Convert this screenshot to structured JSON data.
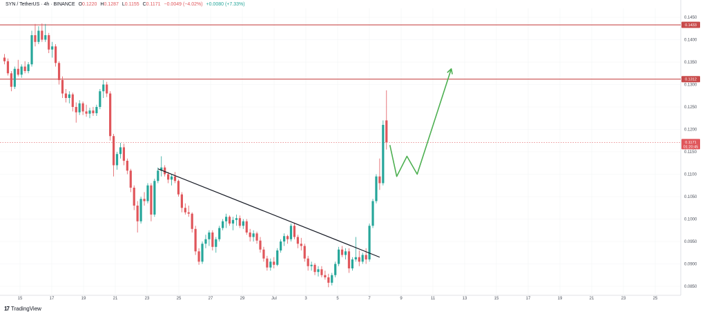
{
  "header": {
    "symbol": "SYN / TetherUS · 4h · BINANCE",
    "open_label": "O",
    "open": "0.1220",
    "high_label": "H",
    "high": "0.1287",
    "low_label": "L",
    "low": "0.1155",
    "close_label": "C",
    "close": "0.1171",
    "change": "−0.0049 (−4.02%)",
    "volume_change": "+0.0080 (+7.33%)"
  },
  "brand": {
    "name": "TradingView",
    "logo": "17"
  },
  "colors": {
    "up": "#26a69a",
    "down": "#e0565b",
    "resistance": "#c84a4a",
    "trendline": "#131722",
    "projection": "#4caf50",
    "last_price": "#e0565b"
  },
  "chart_data": {
    "type": "candlestick",
    "y_range": [
      0.083,
      0.147
    ],
    "y_ticks": [
      "0.1450",
      "0.1400",
      "0.1350",
      "0.1300",
      "0.1250",
      "0.1200",
      "0.1150",
      "0.1100",
      "0.1050",
      "0.1000",
      "0.0950",
      "0.0900",
      "0.0850"
    ],
    "x_ticks": [
      "15",
      "17",
      "19",
      "21",
      "23",
      "25",
      "27",
      "29",
      "Jul",
      "3",
      "5",
      "7",
      "9",
      "11",
      "13",
      "15",
      "17",
      "19",
      "21",
      "23",
      "25"
    ],
    "last_price": "0.1171",
    "countdown": "01:20:45",
    "resistance_levels": [
      {
        "label": "0.1433",
        "value": 0.1433
      },
      {
        "label": "0.1312",
        "value": 0.1312
      }
    ],
    "trendline": [
      {
        "i": 45,
        "y": 0.1112
      },
      {
        "i": 110,
        "y": 0.0915
      }
    ],
    "projection": [
      {
        "i": 113,
        "y": 0.1165
      },
      {
        "i": 115,
        "y": 0.1095
      },
      {
        "i": 118,
        "y": 0.114
      },
      {
        "i": 121,
        "y": 0.11
      },
      {
        "i": 131,
        "y": 0.1335
      }
    ],
    "candles": [
      [
        0.136,
        0.1368,
        0.1345,
        0.1352
      ],
      [
        0.1352,
        0.1358,
        0.132,
        0.1325
      ],
      [
        0.1325,
        0.133,
        0.1285,
        0.1295
      ],
      [
        0.1295,
        0.134,
        0.129,
        0.1335
      ],
      [
        0.1335,
        0.1355,
        0.1318,
        0.1322
      ],
      [
        0.1322,
        0.1345,
        0.1315,
        0.134
      ],
      [
        0.134,
        0.1352,
        0.1325,
        0.133
      ],
      [
        0.133,
        0.135,
        0.1325,
        0.1345
      ],
      [
        0.1345,
        0.142,
        0.134,
        0.141
      ],
      [
        0.141,
        0.1435,
        0.1385,
        0.1395
      ],
      [
        0.1395,
        0.143,
        0.139,
        0.142
      ],
      [
        0.142,
        0.1436,
        0.1395,
        0.14
      ],
      [
        0.14,
        0.1435,
        0.1395,
        0.141
      ],
      [
        0.141,
        0.1415,
        0.137,
        0.1378
      ],
      [
        0.1378,
        0.1395,
        0.136,
        0.1385
      ],
      [
        0.1385,
        0.139,
        0.134,
        0.1348
      ],
      [
        0.1348,
        0.1352,
        0.13,
        0.131
      ],
      [
        0.131,
        0.1318,
        0.127,
        0.128
      ],
      [
        0.128,
        0.129,
        0.126,
        0.127
      ],
      [
        0.127,
        0.1285,
        0.1258,
        0.1278
      ],
      [
        0.1278,
        0.1282,
        0.124,
        0.125
      ],
      [
        0.125,
        0.126,
        0.1215,
        0.1238
      ],
      [
        0.1238,
        0.1265,
        0.1232,
        0.1258
      ],
      [
        0.1258,
        0.1262,
        0.1232,
        0.124
      ],
      [
        0.124,
        0.1255,
        0.1228,
        0.1235
      ],
      [
        0.1235,
        0.1248,
        0.1225,
        0.1242
      ],
      [
        0.1242,
        0.125,
        0.123,
        0.1236
      ],
      [
        0.1236,
        0.1255,
        0.123,
        0.125
      ],
      [
        0.125,
        0.129,
        0.1245,
        0.1285
      ],
      [
        0.1285,
        0.131,
        0.127,
        0.13
      ],
      [
        0.13,
        0.1306,
        0.1272,
        0.128
      ],
      [
        0.128,
        0.1285,
        0.1175,
        0.1185
      ],
      [
        0.1185,
        0.119,
        0.1095,
        0.112
      ],
      [
        0.112,
        0.115,
        0.111,
        0.1145
      ],
      [
        0.1145,
        0.117,
        0.1135,
        0.116
      ],
      [
        0.116,
        0.1168,
        0.112,
        0.113
      ],
      [
        0.113,
        0.1135,
        0.11,
        0.1108
      ],
      [
        0.1108,
        0.1112,
        0.106,
        0.107
      ],
      [
        0.107,
        0.1075,
        0.102,
        0.103
      ],
      [
        0.103,
        0.104,
        0.097,
        0.0995
      ],
      [
        0.0995,
        0.105,
        0.099,
        0.1045
      ],
      [
        0.1045,
        0.106,
        0.103,
        0.104
      ],
      [
        0.104,
        0.108,
        0.1035,
        0.1075
      ],
      [
        0.1075,
        0.108,
        0.0995,
        0.101
      ],
      [
        0.101,
        0.109,
        0.1005,
        0.1085
      ],
      [
        0.1085,
        0.1115,
        0.108,
        0.1108
      ],
      [
        0.1108,
        0.114,
        0.1095,
        0.1115
      ],
      [
        0.1115,
        0.112,
        0.1095,
        0.11
      ],
      [
        0.11,
        0.1105,
        0.108,
        0.1088
      ],
      [
        0.1088,
        0.11,
        0.1075,
        0.1095
      ],
      [
        0.1095,
        0.1105,
        0.108,
        0.1085
      ],
      [
        0.1085,
        0.1088,
        0.105,
        0.1055
      ],
      [
        0.1055,
        0.106,
        0.1015,
        0.1025
      ],
      [
        0.1025,
        0.1035,
        0.101,
        0.1015
      ],
      [
        0.1015,
        0.103,
        0.1005,
        0.1012
      ],
      [
        0.1012,
        0.1015,
        0.097,
        0.0978
      ],
      [
        0.0978,
        0.0985,
        0.092,
        0.0928
      ],
      [
        0.0928,
        0.0935,
        0.0898,
        0.0905
      ],
      [
        0.0905,
        0.095,
        0.09,
        0.0945
      ],
      [
        0.0945,
        0.0965,
        0.0935,
        0.0955
      ],
      [
        0.0955,
        0.0975,
        0.094,
        0.097
      ],
      [
        0.097,
        0.0975,
        0.093,
        0.0938
      ],
      [
        0.0938,
        0.096,
        0.0925,
        0.0955
      ],
      [
        0.0955,
        0.0985,
        0.095,
        0.098
      ],
      [
        0.098,
        0.1,
        0.0975,
        0.0995
      ],
      [
        0.0995,
        0.1012,
        0.098,
        0.1005
      ],
      [
        0.1005,
        0.1008,
        0.0985,
        0.099
      ],
      [
        0.099,
        0.1005,
        0.0975,
        0.0998
      ],
      [
        0.0998,
        0.101,
        0.0985,
        0.1002
      ],
      [
        0.1002,
        0.1008,
        0.098,
        0.0985
      ],
      [
        0.0985,
        0.1,
        0.0978,
        0.0995
      ],
      [
        0.0995,
        0.1,
        0.0965,
        0.097
      ],
      [
        0.097,
        0.0978,
        0.095,
        0.096
      ],
      [
        0.096,
        0.0975,
        0.095,
        0.0968
      ],
      [
        0.0968,
        0.0972,
        0.0945,
        0.0952
      ],
      [
        0.0952,
        0.096,
        0.0925,
        0.0932
      ],
      [
        0.0932,
        0.0938,
        0.0905,
        0.0912
      ],
      [
        0.0912,
        0.0918,
        0.0885,
        0.0892
      ],
      [
        0.0892,
        0.0912,
        0.0885,
        0.0905
      ],
      [
        0.0905,
        0.0915,
        0.089,
        0.0898
      ],
      [
        0.0898,
        0.0935,
        0.0895,
        0.093
      ],
      [
        0.093,
        0.0955,
        0.0925,
        0.095
      ],
      [
        0.095,
        0.0968,
        0.094,
        0.0962
      ],
      [
        0.0962,
        0.0965,
        0.0945,
        0.0955
      ],
      [
        0.0955,
        0.099,
        0.095,
        0.0985
      ],
      [
        0.0985,
        0.0992,
        0.0955,
        0.096
      ],
      [
        0.096,
        0.0965,
        0.0935,
        0.0945
      ],
      [
        0.0945,
        0.0958,
        0.093,
        0.094
      ],
      [
        0.094,
        0.0945,
        0.0905,
        0.0912
      ],
      [
        0.0912,
        0.0918,
        0.0885,
        0.0895
      ],
      [
        0.0895,
        0.0905,
        0.0885,
        0.0898
      ],
      [
        0.0898,
        0.0902,
        0.0875,
        0.0882
      ],
      [
        0.0882,
        0.0895,
        0.0872,
        0.0888
      ],
      [
        0.0888,
        0.0895,
        0.087,
        0.0875
      ],
      [
        0.0875,
        0.0885,
        0.0865,
        0.087
      ],
      [
        0.087,
        0.0878,
        0.0848,
        0.0858
      ],
      [
        0.0858,
        0.088,
        0.0852,
        0.0875
      ],
      [
        0.0875,
        0.0905,
        0.087,
        0.09
      ],
      [
        0.09,
        0.0938,
        0.0895,
        0.0932
      ],
      [
        0.0932,
        0.094,
        0.0915,
        0.092
      ],
      [
        0.092,
        0.0935,
        0.091,
        0.0928
      ],
      [
        0.0928,
        0.0935,
        0.088,
        0.089
      ],
      [
        0.089,
        0.0915,
        0.0885,
        0.091
      ],
      [
        0.091,
        0.096,
        0.0905,
        0.0915
      ],
      [
        0.0915,
        0.093,
        0.0895,
        0.0905
      ],
      [
        0.0905,
        0.0925,
        0.09,
        0.092
      ],
      [
        0.092,
        0.0935,
        0.09,
        0.091
      ],
      [
        0.091,
        0.099,
        0.0905,
        0.0985
      ],
      [
        0.0985,
        0.1045,
        0.098,
        0.104
      ],
      [
        0.104,
        0.11,
        0.1035,
        0.1095
      ],
      [
        0.1095,
        0.1135,
        0.1065,
        0.108
      ],
      [
        0.108,
        0.122,
        0.1075,
        0.121
      ],
      [
        0.122,
        0.1287,
        0.1155,
        0.1171
      ]
    ]
  }
}
